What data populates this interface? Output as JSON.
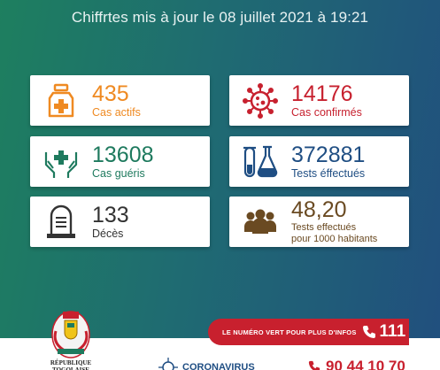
{
  "header": {
    "text": "Chiffrtes mis à jour le 08 juillet 2021 à 19:21"
  },
  "cards": [
    {
      "value": "435",
      "label": "Cas actifs",
      "icon": "medicine-bottle-icon",
      "color": "#ef8a22"
    },
    {
      "value": "14176",
      "label": "Cas confirmés",
      "icon": "virus-icon",
      "color": "#c7212f"
    },
    {
      "value": "13608",
      "label": "Cas guéris",
      "icon": "hands-cross-icon",
      "color": "#1e7a5e"
    },
    {
      "value": "372881",
      "label": "Tests éffectués",
      "icon": "test-tubes-icon",
      "color": "#1f4e83"
    },
    {
      "value": "133",
      "label": "Décès",
      "icon": "tombstone-icon",
      "color": "#333333"
    },
    {
      "value": "48,20",
      "label_line1": "Tests effectués",
      "label_line2": "pour 1000 habitants",
      "icon": "people-group-icon",
      "color": "#6a4a22"
    }
  ],
  "hotline": {
    "text": "LE NUMÉRO VERT POUR PLUS D'INFOS",
    "number": "111"
  },
  "footer": {
    "republic": "RÉPUBLIQUE TOGOLAISE",
    "corona_title": "CORONAVIRUS",
    "phone_partial": "90 44 10 70"
  }
}
